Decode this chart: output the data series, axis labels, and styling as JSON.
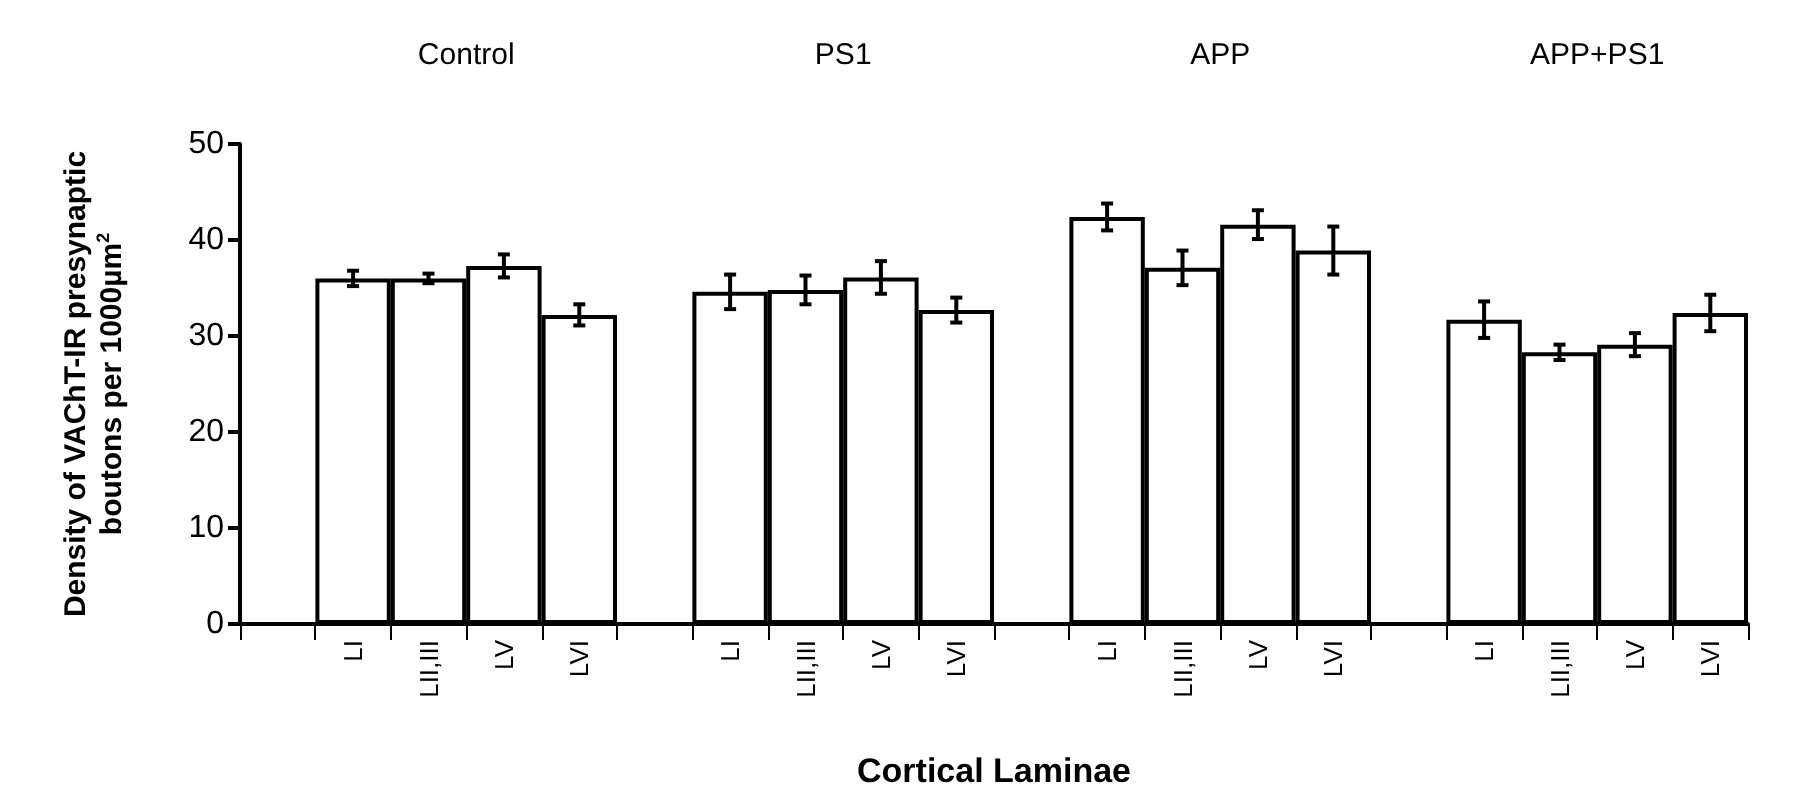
{
  "chart_data": {
    "type": "bar",
    "xlabel": "Cortical Laminae",
    "ylabel": "Density of VAChT-IR presynaptic\nboutons per 1000µm$^{2}$",
    "annotations": [
      "Control",
      "PS1",
      "APP",
      "APP+PS1"
    ],
    "categories": [
      null,
      "LI",
      "LII,III",
      "LV",
      "LVI",
      null,
      "LI",
      "LII,III",
      "LV",
      "LVI",
      null,
      "LI",
      "LII,III",
      "LV",
      "LVI",
      null,
      "LI",
      "LII,III",
      "LV",
      "LVI"
    ],
    "series": [
      {
        "color": "#ffffff",
        "values": [
          null,
          36,
          36,
          37.3,
          32.2,
          null,
          34.6,
          34.8,
          36.1,
          32.7,
          null,
          42.4,
          37.1,
          41.6,
          38.9,
          null,
          31.7,
          28.3,
          29.1,
          32.4
        ],
        "errors": [
          null,
          0.8,
          0.5,
          1.2,
          1.1,
          null,
          1.8,
          1.5,
          1.7,
          1.3,
          null,
          1.4,
          1.8,
          1.5,
          2.5,
          null,
          1.9,
          0.8,
          1.2,
          1.9
        ]
      }
    ],
    "ylim": [
      0,
      50
    ],
    "yticks": [
      0,
      10,
      20,
      30,
      40,
      50
    ],
    "grid": false
  }
}
